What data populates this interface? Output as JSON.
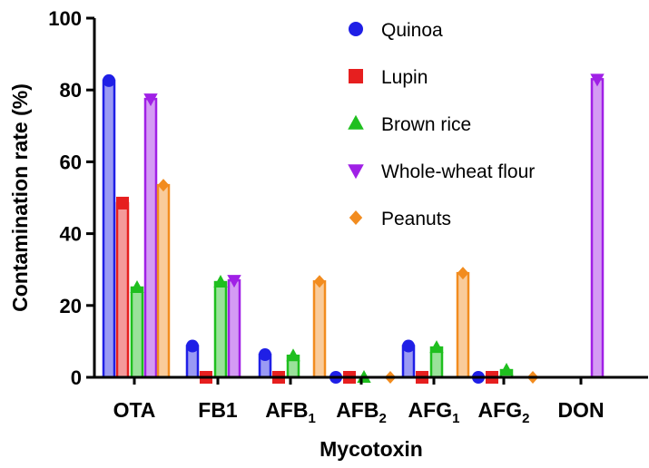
{
  "chart_data": {
    "type": "bar",
    "title": "",
    "xlabel": "Mycotoxin",
    "ylabel": "Contamination rate (%)",
    "ylim": [
      0,
      100
    ],
    "yticks": [
      0,
      20,
      40,
      60,
      80,
      100
    ],
    "categories": [
      {
        "base": "OTA",
        "sub": ""
      },
      {
        "base": "FB1",
        "sub": ""
      },
      {
        "base": "AFB",
        "sub": "1"
      },
      {
        "base": "AFB",
        "sub": "2"
      },
      {
        "base": "AFG",
        "sub": "1"
      },
      {
        "base": "AFG",
        "sub": "2"
      },
      {
        "base": "DON",
        "sub": ""
      }
    ],
    "legend_position": "top-right",
    "grid": false,
    "series": [
      {
        "name": "Quinoa",
        "color": "#1f1fe6",
        "marker": "circle",
        "values": [
          82.6,
          8.7,
          6.3,
          0,
          8.7,
          0,
          null
        ]
      },
      {
        "name": "Lupin",
        "color": "#e61f1f",
        "marker": "square",
        "values": [
          48.5,
          0,
          0,
          0,
          0,
          0,
          null
        ]
      },
      {
        "name": "Brown rice",
        "color": "#1fbf1f",
        "marker": "triangle-up",
        "values": [
          25.0,
          26.5,
          6.0,
          0,
          8.3,
          2.0,
          null
        ]
      },
      {
        "name": "Whole-wheat flour",
        "color": "#a020e6",
        "marker": "triangle-down",
        "values": [
          77.5,
          27.0,
          null,
          null,
          null,
          null,
          83.0
        ]
      },
      {
        "name": "Peanuts",
        "color": "#f28c1f",
        "marker": "diamond",
        "values": [
          53.5,
          null,
          26.7,
          0,
          29.0,
          0,
          null
        ]
      }
    ]
  }
}
